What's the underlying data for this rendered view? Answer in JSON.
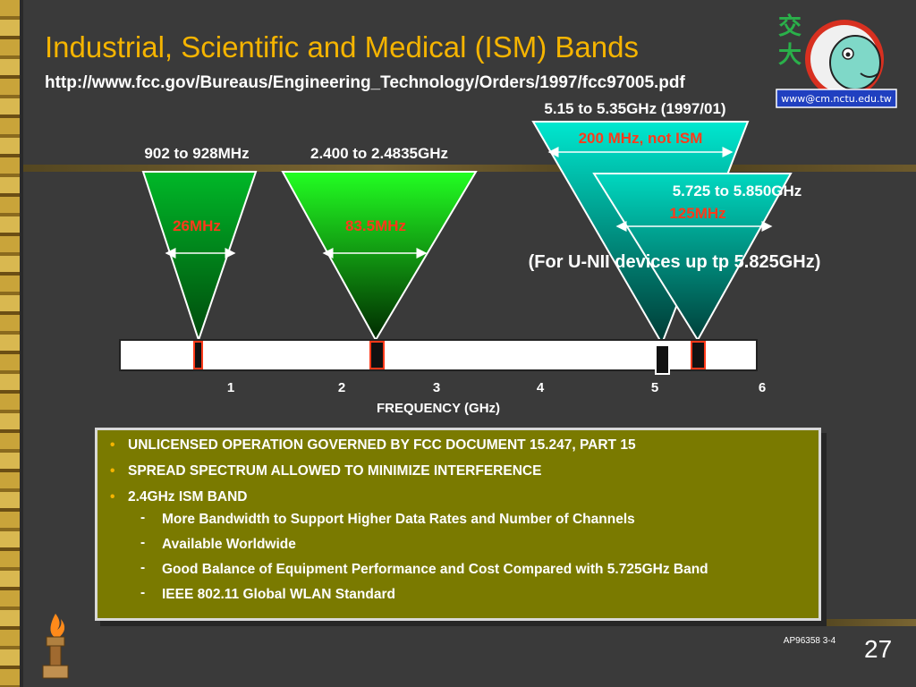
{
  "slide": {
    "title": "Industrial, Scientific and Medical (ISM) Bands",
    "url": "http://www.fcc.gov/Bureaus/Engineering_Technology/Orders/1997/fcc97005.pdf",
    "logo_text": "www@cm.nctu.edu.tw",
    "logo_glyphs": [
      "交",
      "大"
    ],
    "page_number": "27",
    "footer_code": "AP96358 3-4"
  },
  "colors": {
    "title": "#f5b400",
    "band_green_dark": "#00a020",
    "band_green_bright": "#22ff22",
    "band_teal": "#00d8c0",
    "label_red": "#ff3a1a",
    "bullet_box": "#7a7a00"
  },
  "diagram": {
    "axis_label": "FREQUENCY (GHz)",
    "ticks": [
      "1",
      "2",
      "3",
      "4",
      "5",
      "6"
    ],
    "bands": [
      {
        "range_label": "902 to 928MHz",
        "width_label": "26MHz"
      },
      {
        "range_label": "2.400 to 2.4835GHz",
        "width_label": "83.5MHz"
      },
      {
        "range_label": "5.15 to 5.35GHz (1997/01)",
        "width_label": "200 MHz, not ISM"
      },
      {
        "range_label": "5.725 to 5.850GHz",
        "width_label": "125MHz"
      }
    ],
    "note": "(For U-NII devices up tp 5.825GHz)"
  },
  "bullets": [
    {
      "text": "UNLICENSED OPERATION GOVERNED BY FCC DOCUMENT 15.247, PART 15"
    },
    {
      "text": "SPREAD SPECTRUM  ALLOWED TO MINIMIZE INTERFERENCE"
    },
    {
      "text": "2.4GHz ISM BAND",
      "subs": [
        "More Bandwidth to Support Higher Data Rates and Number of  Channels",
        "Available Worldwide",
        "Good Balance of  Equipment Performance and Cost Compared with 5.725GHz Band",
        "IEEE 802.11 Global WLAN Standard"
      ]
    }
  ],
  "markers": {
    "bullet": "•",
    "dash": "-"
  },
  "icons": {
    "logo": "nctu-mascot-logo",
    "torch": "torch-icon"
  }
}
